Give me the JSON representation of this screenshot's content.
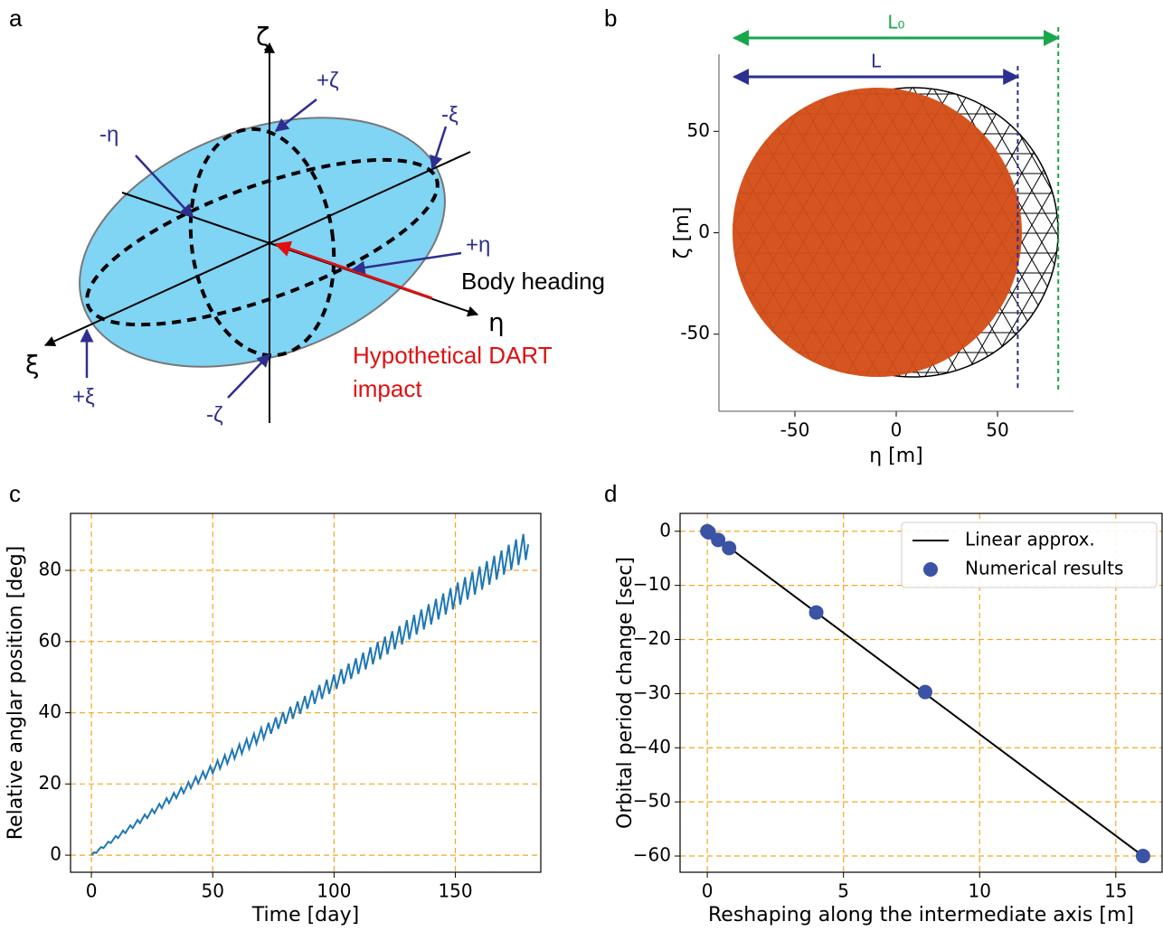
{
  "panel_a": {
    "label": "a",
    "axes": {
      "zeta": "ζ",
      "xi": "ξ",
      "eta": "η"
    },
    "markers": {
      "plus_zeta": "+ζ",
      "minus_xi": "-ξ",
      "minus_eta": "-η",
      "plus_eta": "+η",
      "plus_xi": "+ξ",
      "minus_zeta": "-ζ"
    },
    "heading": "Body heading",
    "impact": [
      "Hypothetical DART",
      "impact"
    ]
  },
  "chart_data": [
    {
      "type": "mesh",
      "panel_label": "b",
      "xlabel": "η  [m]",
      "ylabel": "ζ  [m]",
      "xlim": [
        -87.5,
        87.5
      ],
      "ylim": [
        -88,
        88
      ],
      "xticks": [
        -50,
        0,
        50
      ],
      "yticks": [
        -50,
        0,
        50
      ],
      "annotations": [
        {
          "label": "L₀",
          "start": -80,
          "value": 80,
          "color": "#1aa64a"
        },
        {
          "label": "L",
          "start": -80,
          "value": 60,
          "color": "#2b2f8f"
        }
      ]
    },
    {
      "type": "line",
      "panel_label": "c",
      "xlabel": "Time [day]",
      "ylabel": "Relative anglar position [deg]",
      "xlim": [
        -8.6,
        185.2
      ],
      "ylim": [
        -4.8,
        96
      ],
      "xticks": [
        0,
        50,
        100,
        150
      ],
      "yticks": [
        0,
        20,
        40,
        60,
        80
      ],
      "grid": true,
      "color": "#1f77b4",
      "x": [
        0,
        1,
        2,
        3,
        4,
        5,
        6,
        7,
        8,
        9,
        10,
        11,
        12,
        13,
        14,
        15,
        16,
        17,
        18,
        19,
        20,
        21,
        22,
        23,
        24,
        25,
        26,
        27,
        28,
        29,
        30,
        31,
        32,
        33,
        34,
        35,
        36,
        37,
        38,
        39,
        40,
        41,
        42,
        43,
        44,
        45,
        46,
        47,
        48,
        49,
        50,
        51,
        52,
        53,
        54,
        55,
        56,
        57,
        58,
        59,
        60,
        61,
        62,
        63,
        64,
        65,
        66,
        67,
        68,
        69,
        70,
        71,
        72,
        73,
        74,
        75,
        76,
        77,
        78,
        79,
        80,
        81,
        82,
        83,
        84,
        85,
        86,
        87,
        88,
        89,
        90,
        91,
        92,
        93,
        94,
        95,
        96,
        97,
        98,
        99,
        100,
        101,
        102,
        103,
        104,
        105,
        106,
        107,
        108,
        109,
        110,
        111,
        112,
        113,
        114,
        115,
        116,
        117,
        118,
        119,
        120,
        121,
        122,
        123,
        124,
        125,
        126,
        127,
        128,
        129,
        130,
        131,
        132,
        133,
        134,
        135,
        136,
        137,
        138,
        139,
        140,
        141,
        142,
        143,
        144,
        145,
        146,
        147,
        148,
        149,
        150,
        151,
        152,
        153,
        154,
        155,
        156,
        157,
        158,
        159,
        160,
        161,
        162,
        163,
        164,
        165,
        166,
        167,
        168,
        169,
        170,
        171,
        172,
        173,
        174,
        175,
        176,
        177,
        178,
        179,
        180
      ],
      "values": [
        0,
        0.8,
        0.6,
        1.5,
        2.3,
        2.0,
        2.9,
        3.8,
        3.4,
        4.4,
        5.4,
        4.8,
        5.8,
        6.9,
        6.2,
        7.3,
        8.4,
        7.6,
        8.7,
        9.9,
        9.0,
        10.2,
        11.4,
        10.4,
        11.6,
        12.9,
        11.8,
        13.1,
        14.4,
        13.2,
        14.6,
        16.0,
        14.6,
        16.0,
        17.5,
        16.0,
        17.5,
        19.0,
        17.4,
        18.9,
        20.5,
        18.8,
        20.4,
        22.0,
        20.2,
        21.8,
        23.5,
        21.6,
        23.3,
        25.0,
        23.0,
        24.7,
        26.6,
        24.3,
        26.2,
        28.1,
        25.7,
        27.6,
        29.6,
        27.1,
        29.1,
        31.1,
        28.5,
        30.6,
        32.6,
        29.9,
        32.0,
        34.1,
        31.3,
        33.5,
        35.7,
        32.7,
        34.9,
        37.2,
        34.1,
        36.4,
        38.7,
        35.5,
        37.8,
        40.2,
        36.9,
        39.3,
        41.7,
        38.3,
        40.7,
        43.2,
        39.7,
        42.2,
        44.7,
        41.1,
        43.7,
        46.3,
        42.5,
        45.1,
        47.8,
        43.9,
        46.6,
        49.3,
        45.3,
        48.0,
        50.8,
        46.7,
        49.5,
        52.3,
        48.1,
        50.9,
        53.8,
        49.5,
        52.4,
        55.3,
        50.9,
        53.8,
        56.9,
        52.2,
        55.3,
        58.4,
        53.6,
        56.7,
        59.9,
        55.0,
        58.2,
        61.4,
        56.4,
        59.7,
        62.9,
        57.8,
        61.1,
        64.4,
        59.2,
        62.6,
        66.0,
        60.6,
        64.0,
        67.5,
        62.0,
        65.5,
        69.0,
        63.4,
        66.9,
        70.5,
        64.8,
        68.4,
        72.0,
        66.2,
        69.8,
        73.5,
        67.6,
        71.3,
        75.0,
        69.0,
        72.8,
        76.6,
        70.4,
        74.2,
        78.1,
        71.8,
        75.7,
        79.6,
        73.2,
        77.1,
        81.1,
        74.6,
        78.6,
        82.6,
        76.0,
        80.0,
        84.1,
        77.4,
        81.5,
        85.6,
        78.8,
        82.9,
        87.2,
        80.1,
        84.4,
        88.7,
        81.5,
        85.8,
        90.2,
        82.9,
        87.3
      ]
    },
    {
      "type": "scatter",
      "panel_label": "d",
      "xlabel": "Reshaping along the intermediate axis [m]",
      "ylabel": "Orbital period change [sec]",
      "xlim": [
        -1,
        16.7
      ],
      "ylim": [
        -63,
        3.3
      ],
      "xticks": [
        0,
        5,
        10,
        15
      ],
      "yticks": [
        0,
        {
          "value": -10,
          "label": "−10"
        },
        {
          "value": -20,
          "label": "−20"
        },
        {
          "value": -30,
          "label": "−30"
        },
        {
          "value": -40,
          "label": "−40"
        },
        {
          "value": -50,
          "label": "−50"
        },
        {
          "value": -60,
          "label": "−60"
        }
      ],
      "grid": true,
      "legend": "upper right",
      "series": [
        {
          "name": "Linear approx.",
          "type": "line",
          "color": "#000000",
          "x": [
            0,
            16
          ],
          "values": [
            0,
            -60
          ]
        },
        {
          "name": "Numerical results",
          "type": "scatter",
          "color": "#3a53a4",
          "x": [
            0,
            0.05,
            0.4,
            0.8,
            4,
            8,
            16
          ],
          "values": [
            0,
            -0.2,
            -1.6,
            -3.1,
            -15,
            -29.7,
            -60
          ]
        }
      ]
    }
  ]
}
